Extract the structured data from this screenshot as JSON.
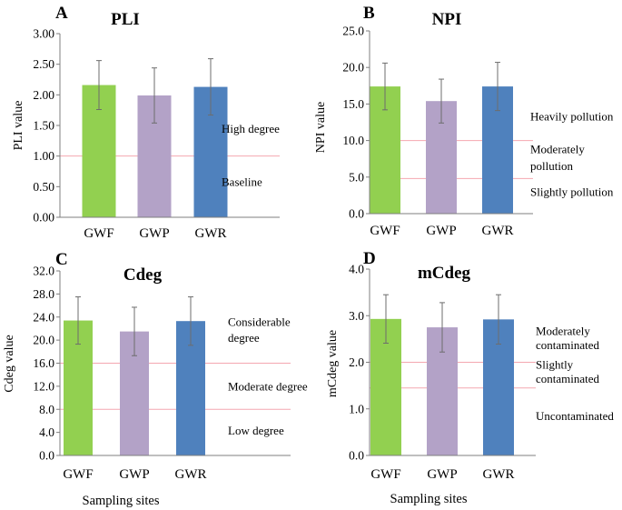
{
  "colors": {
    "GWF": "#92d050",
    "GWP": "#b3a2c7",
    "GWR": "#4f81bd",
    "threshold": "#f4a7b0",
    "axis": "#7f7f7f",
    "errorbar": "#6d6d6d"
  },
  "chart_data": [
    {
      "panel": "A",
      "type": "bar",
      "title": "PLI",
      "ylabel": "PLI value",
      "xlabel": "",
      "categories": [
        "GWF",
        "GWP",
        "GWR"
      ],
      "values": [
        2.16,
        1.99,
        2.13
      ],
      "errors": [
        0.4,
        0.45,
        0.46
      ],
      "ylim": [
        0,
        3
      ],
      "yticks": [
        "0.00",
        "0.50",
        "1.00",
        "1.50",
        "2.00",
        "2.50",
        "3.00"
      ],
      "thresholds": [
        1.0
      ],
      "annotations": [
        {
          "text": "High degree",
          "y": 1.45
        },
        {
          "text": "Baseline",
          "y": 0.58
        }
      ]
    },
    {
      "panel": "B",
      "type": "bar",
      "title": "NPI",
      "ylabel": "NPI value",
      "xlabel": "",
      "categories": [
        "GWF",
        "GWP",
        "GWR"
      ],
      "values": [
        17.4,
        15.4,
        17.4
      ],
      "errors": [
        3.2,
        3.0,
        3.3
      ],
      "ylim": [
        0,
        25
      ],
      "yticks": [
        "0.0",
        "5.0",
        "10.0",
        "15.0",
        "20.0",
        "25.0"
      ],
      "thresholds": [
        10.0,
        4.8
      ],
      "annotations": [
        {
          "text": "Heavily pollution",
          "y": 13.3
        },
        {
          "text": "Moderately",
          "y": 8.8
        },
        {
          "text": "pollution",
          "y": 6.5
        },
        {
          "text": "Slightly pollution",
          "y": 3.0
        }
      ]
    },
    {
      "panel": "C",
      "type": "bar",
      "title": "Cdeg",
      "ylabel": "Cdeg value",
      "xlabel": "Sampling sites",
      "categories": [
        "GWF",
        "GWP",
        "GWR"
      ],
      "values": [
        23.4,
        21.5,
        23.3
      ],
      "errors": [
        4.1,
        4.2,
        4.2
      ],
      "ylim": [
        0,
        32
      ],
      "yticks": [
        "0.0",
        "4.0",
        "8.0",
        "12.0",
        "16.0",
        "20.0",
        "24.0",
        "28.0",
        "32.0"
      ],
      "thresholds": [
        16.0,
        8.0
      ],
      "annotations": [
        {
          "text": "Considerable",
          "y": 23.2
        },
        {
          "text": "degree",
          "y": 20.4
        },
        {
          "text": "Moderate degree",
          "y": 12.0
        },
        {
          "text": "Low degree",
          "y": 4.3
        }
      ]
    },
    {
      "panel": "D",
      "type": "bar",
      "title": "mCdeg",
      "ylabel": "mCdeg value",
      "xlabel": "Sampling sites",
      "categories": [
        "GWF",
        "GWP",
        "GWR"
      ],
      "values": [
        2.93,
        2.75,
        2.92
      ],
      "errors": [
        0.52,
        0.53,
        0.53
      ],
      "ylim": [
        0,
        4
      ],
      "yticks": [
        "0.0",
        "1.0",
        "2.0",
        "3.0",
        "4.0"
      ],
      "thresholds": [
        2.0,
        1.45
      ],
      "annotations": [
        {
          "text": "Moderately",
          "y": 2.67
        },
        {
          "text": "contaminated",
          "y": 2.37
        },
        {
          "text": "Slightly",
          "y": 1.95
        },
        {
          "text": "contaminated",
          "y": 1.65
        },
        {
          "text": "Uncontaminated",
          "y": 0.85
        }
      ]
    }
  ]
}
